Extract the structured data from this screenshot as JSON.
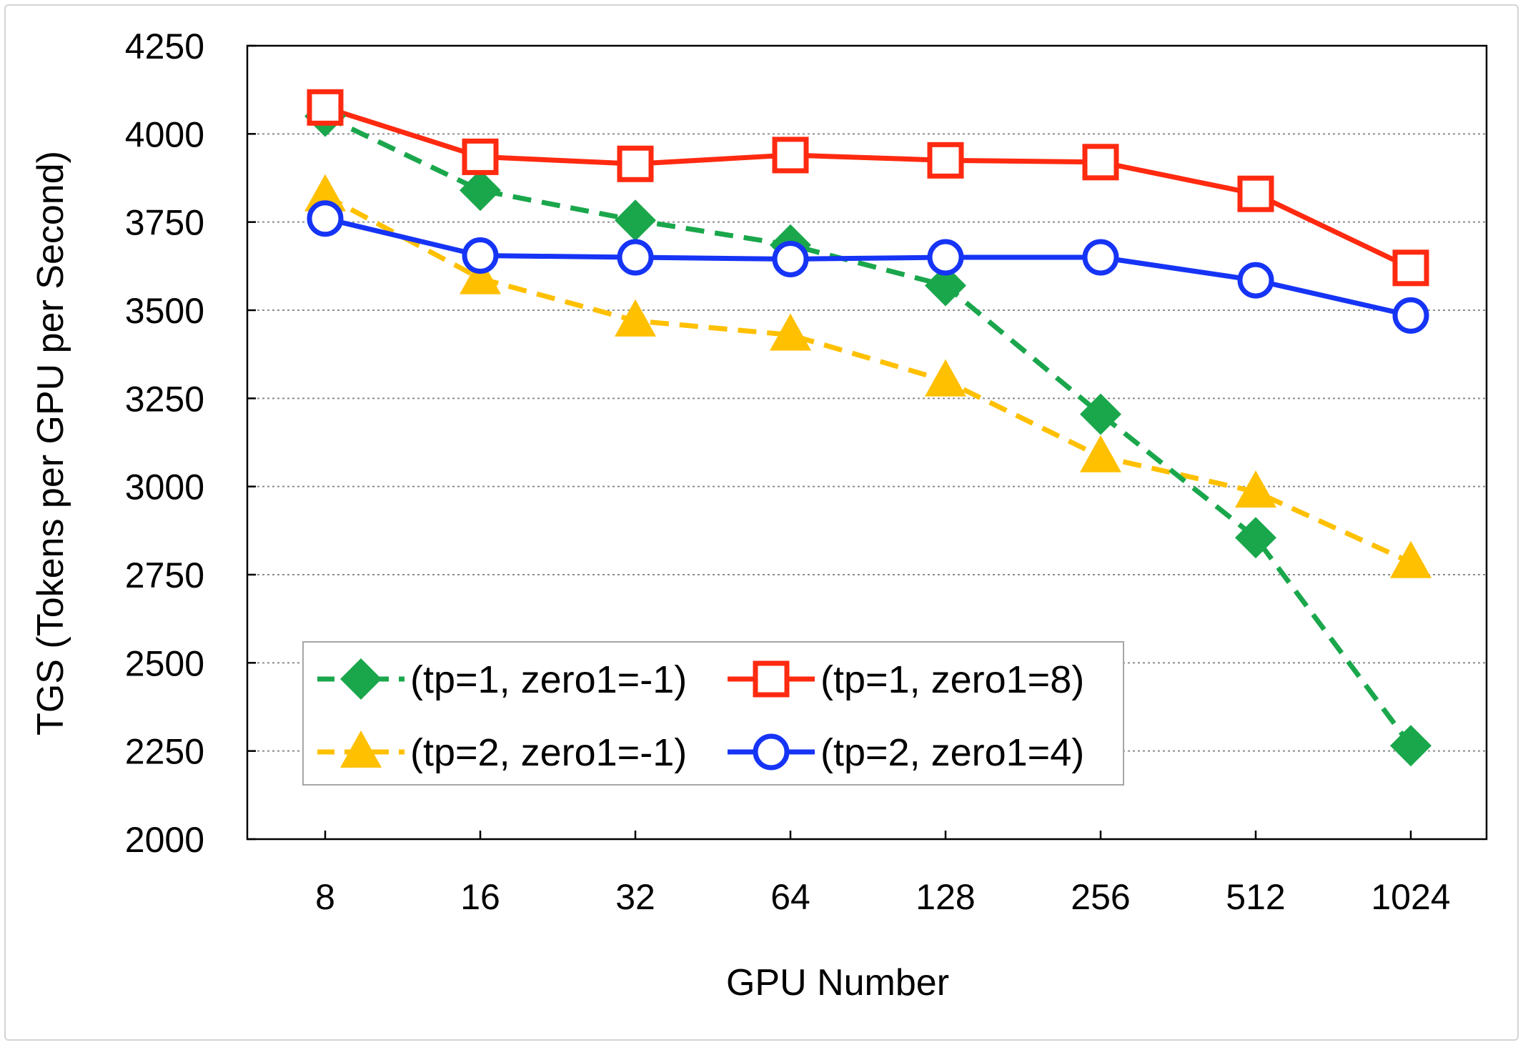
{
  "chart_data": {
    "type": "line",
    "title": "",
    "xlabel": "GPU Number",
    "ylabel": "TGS (Tokens per GPU per Second)",
    "categories": [
      "8",
      "16",
      "32",
      "64",
      "128",
      "256",
      "512",
      "1024"
    ],
    "ylim": [
      2000,
      4250
    ],
    "yticks": [
      2000,
      2250,
      2500,
      2750,
      3000,
      3250,
      3500,
      3750,
      4000,
      4250
    ],
    "grid": "horizontal dotted",
    "legend_position": "bottom-left, two columns",
    "series": [
      {
        "name": "(tp=1, zero1=-1)",
        "values": [
          4050,
          3840,
          3755,
          3685,
          3570,
          3205,
          2855,
          2265
        ],
        "color": "#1aa74c",
        "line": "dashed",
        "marker": "diamond"
      },
      {
        "name": "(tp=1, zero1=8)",
        "values": [
          4075,
          3935,
          3915,
          3940,
          3925,
          3920,
          3830,
          3620
        ],
        "color": "#ff2a10",
        "line": "solid",
        "marker": "square-open"
      },
      {
        "name": "(tp=2, zero1=-1)",
        "values": [
          3825,
          3590,
          3470,
          3430,
          3300,
          3085,
          2985,
          2785
        ],
        "color": "#ffc000",
        "line": "dashed",
        "marker": "triangle"
      },
      {
        "name": "(tp=2, zero1=4)",
        "values": [
          3760,
          3655,
          3650,
          3645,
          3650,
          3650,
          3585,
          3485
        ],
        "color": "#1634f5",
        "line": "solid",
        "marker": "circle-open"
      }
    ]
  }
}
